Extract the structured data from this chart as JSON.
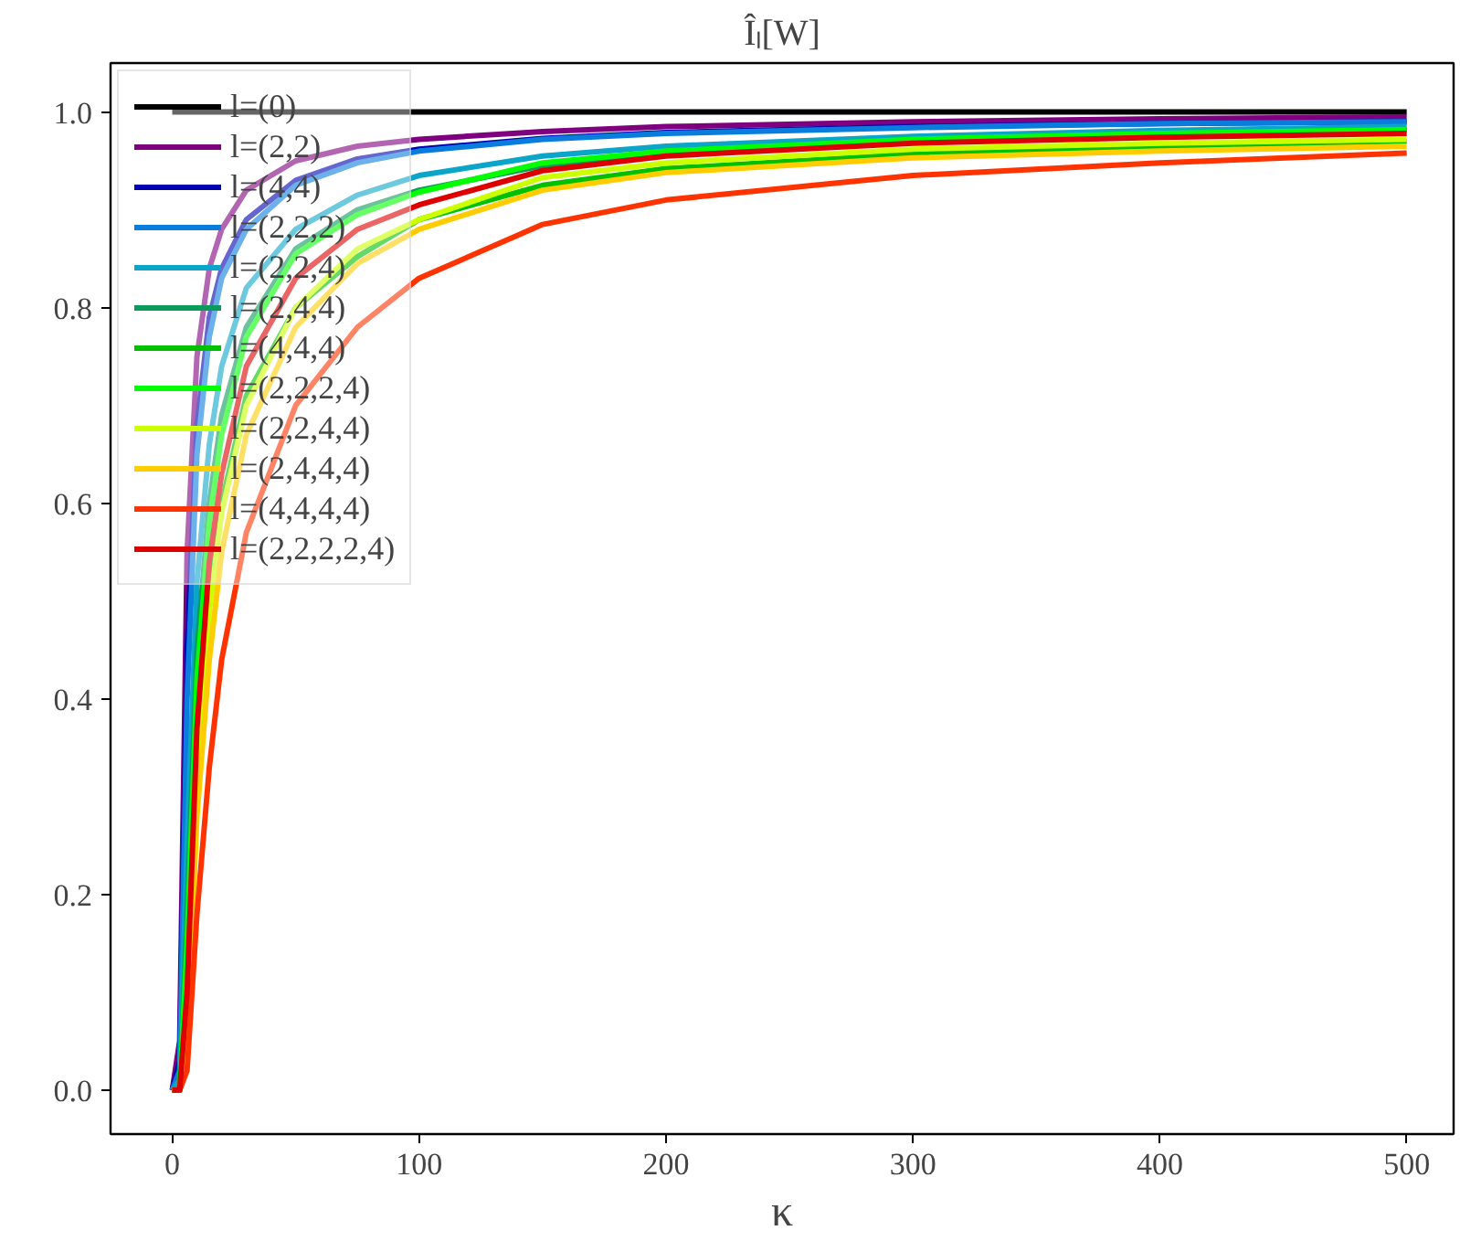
{
  "chart_data": {
    "type": "line",
    "title": "Îₗ[W]",
    "xlabel": "κ",
    "x": [
      0,
      3,
      6,
      10,
      15,
      20,
      30,
      50,
      75,
      100,
      150,
      200,
      300,
      400,
      500
    ],
    "series": [
      {
        "name": "l=(0)",
        "color": "#000000",
        "x": [
          0,
          500
        ],
        "values": [
          1,
          1
        ]
      },
      {
        "name": "l=(2,2)",
        "color": "#7f007f",
        "values": [
          0,
          0.05,
          0.55,
          0.75,
          0.84,
          0.88,
          0.92,
          0.95,
          0.965,
          0.972,
          0.98,
          0.985,
          0.99,
          0.993,
          0.995
        ]
      },
      {
        "name": "l=(4,4)",
        "color": "#0000b0",
        "values": [
          0,
          0.03,
          0.45,
          0.68,
          0.79,
          0.84,
          0.89,
          0.93,
          0.952,
          0.962,
          0.973,
          0.979,
          0.985,
          0.988,
          0.99
        ]
      },
      {
        "name": "l=(2,2,2)",
        "color": "#0a7ddc",
        "values": [
          0,
          0.02,
          0.4,
          0.65,
          0.77,
          0.83,
          0.88,
          0.925,
          0.948,
          0.96,
          0.972,
          0.978,
          0.984,
          0.988,
          0.99
        ]
      },
      {
        "name": "l=(2,2,4)",
        "color": "#0aa5c8",
        "values": [
          0,
          0.01,
          0.25,
          0.52,
          0.66,
          0.74,
          0.82,
          0.88,
          0.915,
          0.935,
          0.955,
          0.965,
          0.975,
          0.981,
          0.985
        ]
      },
      {
        "name": "l=(2,4,4)",
        "color": "#0a9a5a",
        "values": [
          0,
          0,
          0.18,
          0.45,
          0.6,
          0.69,
          0.78,
          0.86,
          0.9,
          0.92,
          0.945,
          0.958,
          0.97,
          0.977,
          0.982
        ]
      },
      {
        "name": "l=(4,4,4)",
        "color": "#00c000",
        "values": [
          0,
          0,
          0.1,
          0.35,
          0.5,
          0.6,
          0.71,
          0.8,
          0.852,
          0.89,
          0.925,
          0.942,
          0.957,
          0.965,
          0.97
        ]
      },
      {
        "name": "l=(2,2,2,4)",
        "color": "#00ff00",
        "values": [
          0,
          0,
          0.15,
          0.42,
          0.58,
          0.67,
          0.77,
          0.855,
          0.895,
          0.918,
          0.948,
          0.96,
          0.972,
          0.978,
          0.982
        ]
      },
      {
        "name": "l=(2,2,4,4)",
        "color": "#ccff00",
        "values": [
          null,
          null,
          0.08,
          0.33,
          0.49,
          0.59,
          0.7,
          0.8,
          0.86,
          0.89,
          0.933,
          0.948,
          0.962,
          0.968,
          0.972
        ]
      },
      {
        "name": "l=(2,4,4,4)",
        "color": "#ffcc00",
        "values": [
          0,
          0,
          0.05,
          0.28,
          0.44,
          0.55,
          0.67,
          0.78,
          0.845,
          0.88,
          0.92,
          0.938,
          0.953,
          0.96,
          0.965
        ]
      },
      {
        "name": "l=(4,4,4,4)",
        "color": "#ff3300",
        "values": [
          0,
          0,
          0.02,
          0.18,
          0.33,
          0.44,
          0.57,
          0.7,
          0.78,
          0.83,
          0.885,
          0.91,
          0.935,
          0.948,
          0.958
        ]
      },
      {
        "name": "l=(2,2,2,2,4)",
        "color": "#dd0000",
        "values": [
          0,
          0,
          0.1,
          0.37,
          0.54,
          0.63,
          0.74,
          0.83,
          0.88,
          0.905,
          0.94,
          0.955,
          0.968,
          0.974,
          0.978
        ]
      }
    ],
    "xlim": [
      -25,
      519
    ],
    "ylim": [
      -0.045,
      1.05
    ],
    "xticks": [
      0,
      100,
      200,
      300,
      400,
      500
    ],
    "yticks": [
      {
        "value": 0,
        "label": "0.0"
      },
      0.2,
      0.4,
      0.6,
      0.8,
      {
        "value": 1,
        "label": "1.0"
      }
    ],
    "grid": false,
    "legend": "top left",
    "line_style": "solid"
  }
}
